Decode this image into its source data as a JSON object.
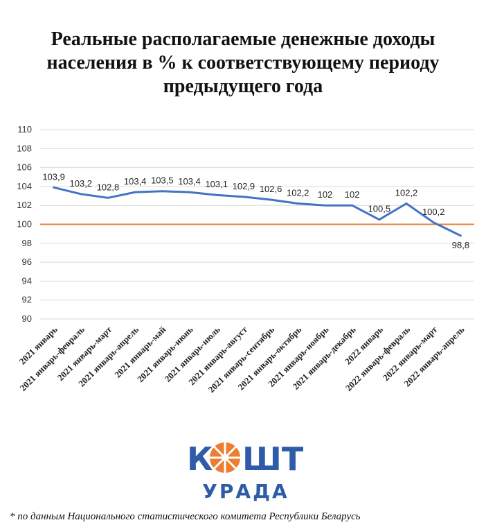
{
  "title_lines": [
    "Реальные располагаемые денежные доходы",
    "населения в % к соответствующему периоду",
    "предыдущего года"
  ],
  "chart_data": {
    "type": "line",
    "title": "Реальные располагаемые денежные доходы населения в % к соответствующему периоду предыдущего года",
    "categories": [
      "2021 январь",
      "2021 январь-февраль",
      "2021 январь-март",
      "2021 январь-апрель",
      "2021 январь-май",
      "2021 январь-июнь",
      "2021 январь-июль",
      "2021 январь-август",
      "2021 январь-сентябрь",
      "2021 январь-октябрь",
      "2021 январь-ноябрь",
      "2021 январь-декабрь",
      "2022 январь",
      "2022 январь-февраль",
      "2022 январь-март",
      "2022 январь-апрель"
    ],
    "series": [
      {
        "values": [
          103.9,
          103.2,
          102.8,
          103.4,
          103.5,
          103.4,
          103.1,
          102.9,
          102.6,
          102.2,
          102,
          102,
          100.5,
          102.2,
          100.2,
          98.8
        ],
        "labels": [
          "103,9",
          "103,2",
          "102,8",
          "103,4",
          "103,5",
          "103,4",
          "103,1",
          "102,9",
          "102,6",
          "102,2",
          "102",
          "102",
          "100,5",
          "102,2",
          "100,2",
          "98,8"
        ],
        "color": "#4472C4"
      }
    ],
    "reference_line": {
      "value": 100,
      "color": "#ED7D31"
    },
    "last_label_color": "#ED7D31",
    "ylim": [
      90,
      110
    ],
    "yticks": [
      90,
      92,
      94,
      96,
      98,
      100,
      102,
      104,
      106,
      108,
      110
    ],
    "grid": true,
    "legend": "none"
  },
  "logo": {
    "word_left": "К",
    "word_right": "ШТ",
    "subtitle": "УРАДА",
    "color_blue": "#2E5CA8",
    "color_orange": "#ED7D31"
  },
  "footnote": "* по данным Национального статистического комитета Республики Беларусь"
}
